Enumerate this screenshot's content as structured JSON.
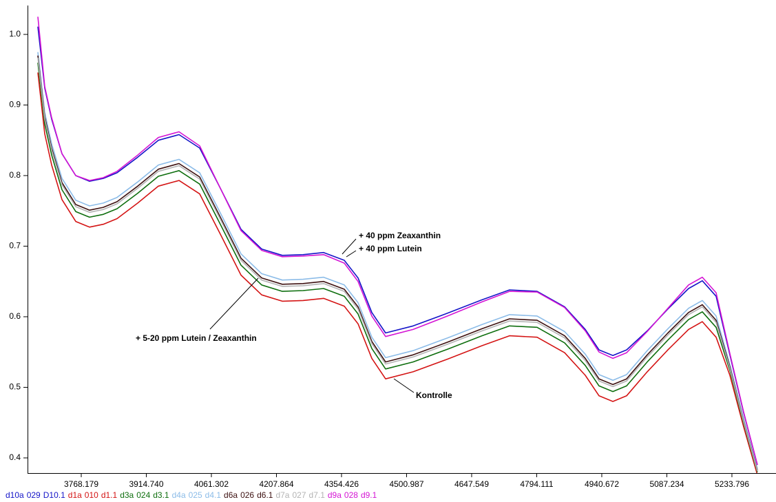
{
  "chart_data": {
    "type": "line",
    "x": [
      3670.5,
      3686.0,
      3701.5,
      3724.8,
      3755.8,
      3786.8,
      3817.8,
      3848.8,
      3895.4,
      3941.9,
      3988.4,
      4035.0,
      4081.5,
      4128.0,
      4174.5,
      4221.1,
      4267.6,
      4314.1,
      4360.7,
      4391.7,
      4422.7,
      4453.7,
      4515.8,
      4593.3,
      4670.9,
      4732.9,
      4794.9,
      4857.0,
      4903.5,
      4934.5,
      4965.6,
      4996.6,
      5043.1,
      5089.6,
      5136.2,
      5167.2,
      5198.2,
      5229.2,
      5260.2,
      5291.3
    ],
    "xlim": [
      3647.2,
      5333.1
    ],
    "ylim": [
      0.3785,
      1.039
    ],
    "xticks": [
      3768.179,
      {
        "value": 3914.74,
        "label": "3914.740"
      },
      4061.302,
      4207.864,
      4354.426,
      4500.987,
      4647.549,
      4794.111,
      4940.672,
      5087.234,
      5233.796
    ],
    "yticks": [
      0.4,
      0.5,
      0.6,
      0.7,
      0.8,
      0.9,
      {
        "value": 1,
        "label": "1.0"
      }
    ],
    "series": [
      {
        "labels": [
          "d10a",
          "029",
          "D10.1"
        ],
        "color": "#1414c8",
        "values": [
          1.011,
          0.924,
          0.88,
          0.831,
          0.8,
          0.792,
          0.796,
          0.804,
          0.826,
          0.85,
          0.858,
          0.839,
          0.782,
          0.724,
          0.696,
          0.687,
          0.688,
          0.691,
          0.68,
          0.655,
          0.606,
          0.577,
          0.587,
          0.605,
          0.624,
          0.638,
          0.636,
          0.614,
          0.582,
          0.553,
          0.545,
          0.553,
          0.58,
          0.611,
          0.64,
          0.651,
          0.629,
          0.546,
          0.464,
          0.39
        ]
      },
      {
        "labels": [
          "d1a",
          "010",
          "d1.1"
        ],
        "color": "#d41414",
        "values": [
          0.946,
          0.859,
          0.815,
          0.766,
          0.735,
          0.727,
          0.731,
          0.739,
          0.761,
          0.785,
          0.793,
          0.774,
          0.717,
          0.659,
          0.631,
          0.622,
          0.623,
          0.626,
          0.615,
          0.59,
          0.541,
          0.512,
          0.522,
          0.54,
          0.559,
          0.573,
          0.571,
          0.549,
          0.517,
          0.488,
          0.48,
          0.488,
          0.522,
          0.553,
          0.582,
          0.593,
          0.571,
          0.517,
          0.444,
          0.376
        ]
      },
      {
        "labels": [
          "d3a",
          "024",
          "d3.1"
        ],
        "color": "#0e6e0e",
        "values": [
          0.96,
          0.873,
          0.829,
          0.78,
          0.749,
          0.741,
          0.745,
          0.753,
          0.775,
          0.799,
          0.807,
          0.788,
          0.731,
          0.673,
          0.645,
          0.636,
          0.637,
          0.64,
          0.629,
          0.604,
          0.555,
          0.526,
          0.536,
          0.554,
          0.573,
          0.587,
          0.585,
          0.563,
          0.531,
          0.502,
          0.494,
          0.502,
          0.536,
          0.567,
          0.596,
          0.607,
          0.585,
          0.524,
          0.449,
          0.38
        ]
      },
      {
        "labels": [
          "d4a",
          "025",
          "d4.1"
        ],
        "color": "#8cbce8",
        "values": [
          0.975,
          0.889,
          0.845,
          0.796,
          0.765,
          0.757,
          0.761,
          0.769,
          0.791,
          0.815,
          0.823,
          0.804,
          0.747,
          0.689,
          0.661,
          0.652,
          0.653,
          0.656,
          0.645,
          0.62,
          0.571,
          0.542,
          0.552,
          0.57,
          0.589,
          0.603,
          0.601,
          0.579,
          0.547,
          0.518,
          0.51,
          0.518,
          0.552,
          0.583,
          0.612,
          0.623,
          0.601,
          0.532,
          0.455,
          0.384
        ]
      },
      {
        "labels": [
          "d6a",
          "026",
          "d6.1"
        ],
        "color": "#3c1010",
        "values": [
          0.97,
          0.883,
          0.839,
          0.79,
          0.759,
          0.751,
          0.755,
          0.763,
          0.785,
          0.809,
          0.817,
          0.798,
          0.741,
          0.683,
          0.655,
          0.646,
          0.647,
          0.65,
          0.639,
          0.614,
          0.565,
          0.536,
          0.546,
          0.564,
          0.583,
          0.597,
          0.595,
          0.573,
          0.541,
          0.512,
          0.504,
          0.512,
          0.546,
          0.577,
          0.606,
          0.617,
          0.595,
          0.529,
          0.452,
          0.382
        ]
      },
      {
        "labels": [
          "d7a",
          "027",
          "d7.1"
        ],
        "color": "#b4b4b4",
        "values": [
          0.967,
          0.88,
          0.836,
          0.787,
          0.756,
          0.748,
          0.752,
          0.76,
          0.782,
          0.806,
          0.814,
          0.795,
          0.738,
          0.68,
          0.652,
          0.643,
          0.644,
          0.647,
          0.636,
          0.611,
          0.562,
          0.533,
          0.543,
          0.561,
          0.58,
          0.594,
          0.592,
          0.57,
          0.538,
          0.509,
          0.501,
          0.509,
          0.543,
          0.574,
          0.603,
          0.614,
          0.592,
          0.527,
          0.451,
          0.381
        ]
      },
      {
        "labels": [
          "d9a",
          "028",
          "d9.1"
        ],
        "color": "#d414d4",
        "values": [
          1.025,
          0.926,
          0.882,
          0.831,
          0.8,
          0.793,
          0.797,
          0.806,
          0.829,
          0.854,
          0.862,
          0.842,
          0.782,
          0.722,
          0.694,
          0.685,
          0.686,
          0.688,
          0.676,
          0.65,
          0.601,
          0.572,
          0.582,
          0.601,
          0.621,
          0.636,
          0.635,
          0.613,
          0.58,
          0.55,
          0.541,
          0.549,
          0.579,
          0.612,
          0.645,
          0.656,
          0.634,
          0.548,
          0.465,
          0.39
        ]
      }
    ],
    "annotations": [
      "+ 40 ppm Zeaxanthin",
      "+ 40 ppm Lutein",
      "+ 5-20 ppm Lutein / Zeaxanthin",
      "Kontrolle"
    ]
  }
}
